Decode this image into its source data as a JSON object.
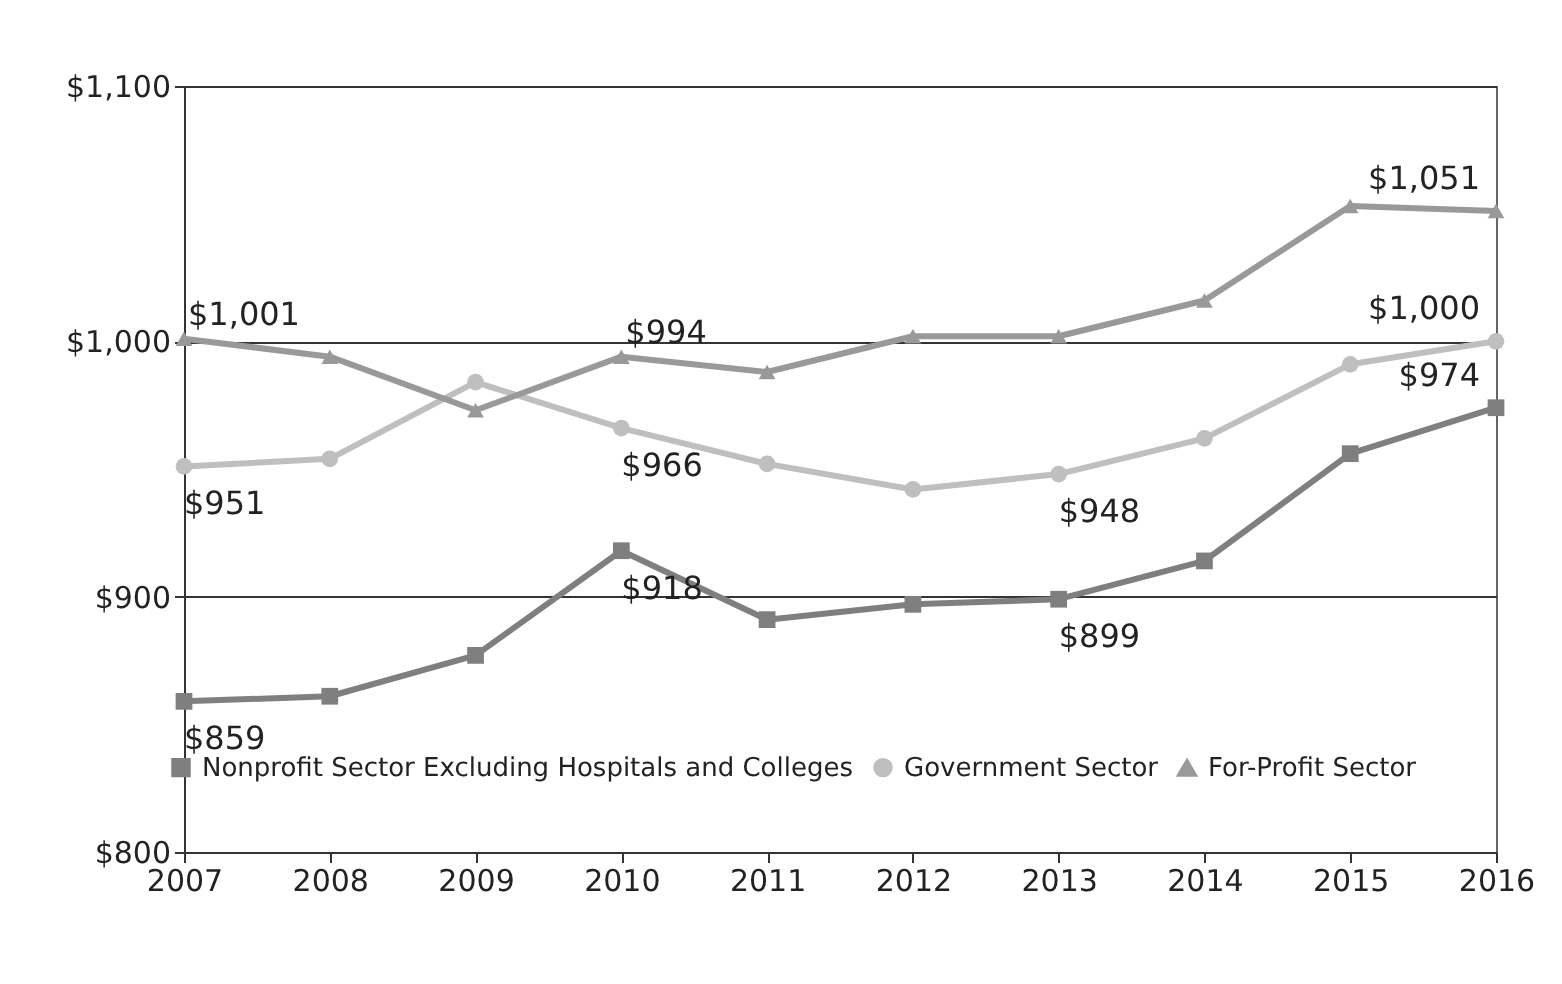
{
  "chart_data": {
    "type": "line",
    "x": [
      2007,
      2008,
      2009,
      2010,
      2011,
      2012,
      2013,
      2014,
      2015,
      2016
    ],
    "xlim": [
      2007,
      2016
    ],
    "xticks": [
      2007,
      2008,
      2009,
      2010,
      2011,
      2012,
      2013,
      2014,
      2015,
      2016
    ],
    "ylim": [
      800,
      1100
    ],
    "yticks": [
      {
        "value": 800,
        "label": "$800"
      },
      {
        "value": 900,
        "label": "$900"
      },
      {
        "value": 1000,
        "label": "$1,000"
      },
      {
        "value": 1100,
        "label": "$1,100"
      }
    ],
    "grid": "y",
    "legend": "bottom",
    "line_style": "solid",
    "series": [
      {
        "name": "Nonprofit Sector Excluding Hospitals and Colleges",
        "color": "#7f7f7f",
        "marker": "square",
        "values": [
          859,
          861,
          877,
          918,
          891,
          897,
          899,
          914,
          956,
          974
        ],
        "value_labels": [
          "$859",
          null,
          null,
          "$918",
          null,
          null,
          "$899",
          null,
          null,
          "$974"
        ]
      },
      {
        "name": "Government Sector",
        "color": "#bfbfbf",
        "marker": "circle",
        "values": [
          951,
          954,
          984,
          966,
          952,
          942,
          948,
          962,
          991,
          1000
        ],
        "value_labels": [
          "$951",
          null,
          null,
          "$966",
          null,
          null,
          "$948",
          null,
          null,
          "$1,000"
        ]
      },
      {
        "name": "For-Profit Sector",
        "color": "#999999",
        "marker": "triangle",
        "values": [
          1001,
          994,
          973,
          994,
          988,
          1002,
          1002,
          1016,
          1053,
          1051
        ],
        "value_labels": [
          "$1,001",
          null,
          null,
          "$994",
          null,
          null,
          null,
          null,
          null,
          "$1,051"
        ]
      }
    ]
  }
}
